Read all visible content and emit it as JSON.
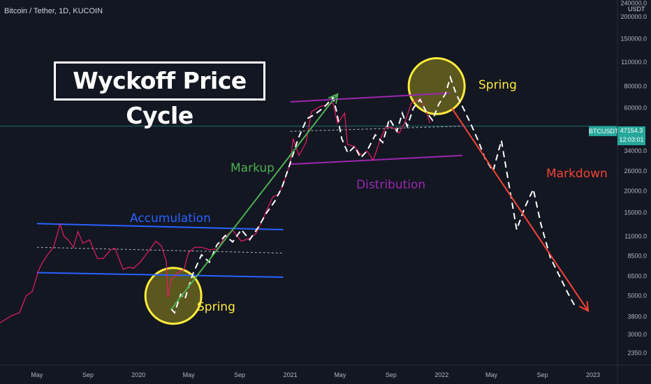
{
  "header": {
    "symbol": "Bitcoin / Tether, 1D, KUCOIN"
  },
  "title": "Wyckoff Price Cycle",
  "annotations": {
    "accumulation": "Accumulation",
    "markup": "Markup",
    "distribution": "Distribution",
    "markdown": "Markdown",
    "spring_lower": "Spring",
    "spring_upper": "Spring"
  },
  "axis": {
    "unit": "USDT"
  },
  "last_price": {
    "ticker": "BTCUSDT",
    "value": "47154.3",
    "countdown": "12:03:01"
  },
  "colors": {
    "background": "#131722",
    "price_line": "#e91e63",
    "accumulation": "#2962ff",
    "markup": "#4caf50",
    "distribution": "#9c27b0",
    "markdown": "#f44336",
    "spring": "#ffeb3b",
    "last_price": "#26a69a"
  },
  "chart_data": {
    "type": "line",
    "scale": "log",
    "xlabel": "",
    "ylabel": "",
    "x_ticks": [
      "May",
      "Sep",
      "2020",
      "May",
      "Sep",
      "2021",
      "May",
      "Sep",
      "2022",
      "May",
      "Sep",
      "2023"
    ],
    "y_ticks": [
      2350,
      3000,
      3800,
      5000,
      6500,
      8500,
      11000,
      15000,
      20000,
      26000,
      34000,
      47154.3,
      60000,
      80000,
      110000,
      150000,
      200000,
      240000
    ],
    "y_tick_labels": [
      "2350.0",
      "3000.0",
      "3800.0",
      "5000.0",
      "6500.0",
      "8500.0",
      "11000.0",
      "15000.0",
      "20000.0",
      "26000.0",
      "34000.0",
      "47154.3",
      "60000.0",
      "80000.0",
      "110000.0",
      "150000.0",
      "200000.0",
      "240000.0"
    ],
    "ylim": [
      2000,
      250000
    ],
    "xlim": [
      "2019-02-01",
      "2023-03-01"
    ],
    "series": [
      {
        "x": [
          "2019-02-01",
          "2019-03-01",
          "2019-03-20",
          "2019-04-05",
          "2019-04-20",
          "2019-05-05",
          "2019-05-15",
          "2019-05-28",
          "2019-06-10",
          "2019-06-26",
          "2019-07-05",
          "2019-07-15",
          "2019-07-28",
          "2019-08-08",
          "2019-08-20",
          "2019-09-05",
          "2019-09-24",
          "2019-10-08",
          "2019-10-26",
          "2019-11-05",
          "2019-11-25",
          "2019-12-10",
          "2019-12-20",
          "2020-01-05",
          "2020-01-20",
          "2020-02-12",
          "2020-02-25",
          "2020-03-08",
          "2020-03-12",
          "2020-03-20",
          "2020-04-05",
          "2020-04-20",
          "2020-04-30",
          "2020-05-15",
          "2020-06-01",
          "2020-06-20",
          "2020-07-10",
          "2020-07-28",
          "2020-08-15",
          "2020-09-05",
          "2020-09-25",
          "2020-10-10",
          "2020-10-22",
          "2020-11-05",
          "2020-11-20",
          "2020-12-05",
          "2020-12-18",
          "2021-01-01",
          "2021-01-08",
          "2021-01-22",
          "2021-02-08",
          "2021-02-21",
          "2021-03-13",
          "2021-04-14",
          "2021-04-25",
          "2021-05-12",
          "2021-05-19",
          "2021-06-05",
          "2021-06-22",
          "2021-07-05",
          "2021-07-20",
          "2021-08-05",
          "2021-08-20",
          "2021-09-07",
          "2021-09-21",
          "2021-10-05",
          "2021-10-20",
          "2021-11-10",
          "2021-11-25",
          "2021-12-04"
        ],
        "values": [
          3500,
          3850,
          4000,
          5000,
          5300,
          7000,
          7800,
          8700,
          9500,
          12900,
          11000,
          10500,
          9500,
          11700,
          10000,
          10500,
          8200,
          8200,
          9200,
          9400,
          7100,
          7300,
          7200,
          7800,
          8700,
          10300,
          9700,
          7900,
          4900,
          6200,
          6800,
          7100,
          8800,
          9500,
          9500,
          9200,
          9300,
          11000,
          11900,
          10300,
          10700,
          11400,
          13000,
          15500,
          18500,
          19200,
          23000,
          29000,
          40000,
          32000,
          38000,
          57000,
          61000,
          64000,
          49000,
          56000,
          37000,
          36000,
          32000,
          34000,
          30000,
          39000,
          47000,
          46000,
          43000,
          50000,
          64000,
          68000,
          57000,
          49000
        ]
      }
    ],
    "overlays": {
      "accumulation_upper": {
        "x": [
          "2019-05-01",
          "2020-12-15"
        ],
        "y": [
          13000,
          12000
        ]
      },
      "accumulation_lower": {
        "x": [
          "2019-05-01",
          "2020-12-15"
        ],
        "y": [
          6800,
          6400
        ]
      },
      "accumulation_mid": {
        "x": [
          "2019-05-01",
          "2020-12-15"
        ],
        "y": [
          9500,
          8800
        ]
      },
      "distribution_upper": {
        "x": [
          "2021-01-01",
          "2022-01-20"
        ],
        "y": [
          65000,
          73000
        ]
      },
      "distribution_lower": {
        "x": [
          "2021-01-01",
          "2022-02-20"
        ],
        "y": [
          28500,
          32000
        ]
      },
      "distribution_mid": {
        "x": [
          "2021-01-01",
          "2022-02-20"
        ],
        "y": [
          44000,
          47154.3
        ]
      },
      "markup_arrow": {
        "x": [
          "2020-03-20",
          "2021-04-25"
        ],
        "y": [
          4200,
          72000
        ]
      },
      "markdown_arrow": {
        "x": [
          "2022-01-25",
          "2022-12-20"
        ],
        "y": [
          60000,
          4100
        ]
      },
      "projection": {
        "x": [
          "2020-03-20",
          "2020-03-28",
          "2020-04-12",
          "2020-04-22",
          "2020-05-10",
          "2020-06-01",
          "2020-06-20",
          "2020-07-08",
          "2020-07-28",
          "2020-08-15",
          "2020-09-05",
          "2020-09-25",
          "2020-10-15",
          "2020-11-05",
          "2020-11-25",
          "2020-12-12",
          "2021-01-01",
          "2021-01-20",
          "2021-02-10",
          "2021-03-01",
          "2021-03-25",
          "2021-04-14",
          "2021-04-22",
          "2021-05-05",
          "2021-05-20",
          "2021-06-05",
          "2021-06-20",
          "2021-07-05",
          "2021-07-25",
          "2021-08-12",
          "2021-08-28",
          "2021-09-15",
          "2021-09-28",
          "2021-10-10",
          "2021-10-25",
          "2021-11-10",
          "2021-11-25",
          "2021-12-10",
          "2021-12-25",
          "2022-01-10",
          "2022-01-22",
          "2022-02-05",
          "2022-02-25",
          "2022-03-15",
          "2022-04-01",
          "2022-04-15",
          "2022-05-05",
          "2022-05-25",
          "2022-06-15",
          "2022-07-01",
          "2022-07-20",
          "2022-08-10",
          "2022-08-28",
          "2022-09-20",
          "2022-10-15",
          "2022-11-01",
          "2022-11-20"
        ],
        "values": [
          4200,
          4000,
          5100,
          4800,
          6600,
          8600,
          7800,
          9800,
          11100,
          10200,
          12000,
          10500,
          12300,
          15000,
          17500,
          21000,
          29000,
          40000,
          52000,
          55000,
          61000,
          69000,
          58000,
          40000,
          33000,
          36000,
          31000,
          34000,
          42000,
          38000,
          52000,
          44000,
          56000,
          47000,
          60000,
          67000,
          57000,
          51000,
          63000,
          72000,
          90000,
          72000,
          58000,
          47000,
          38000,
          31000,
          26000,
          39000,
          20000,
          12000,
          16000,
          20500,
          13000,
          8300,
          6300,
          5200,
          4300
        ]
      }
    },
    "spring_circles": [
      {
        "x": "2020-03-25",
        "y": 5000
      },
      {
        "x": "2021-12-20",
        "y": 80000
      }
    ]
  }
}
